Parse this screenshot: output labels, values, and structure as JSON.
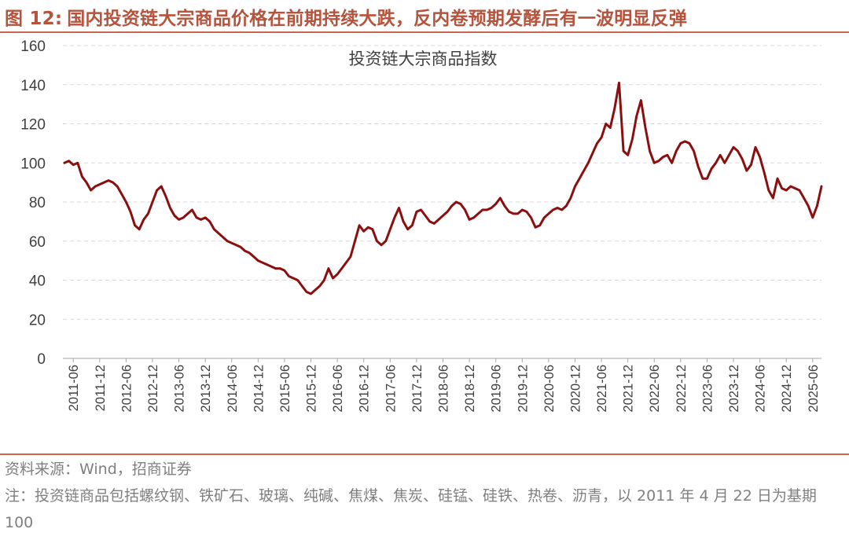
{
  "figure": {
    "label": "图 12:",
    "title": "国内投资链大宗商品价格在前期持续大跌，反内卷预期发酵后有一波明显反弹",
    "source": "资料来源：Wind，招商证券",
    "note": "注：投资链商品包括螺纹钢、铁矿石、玻璃、纯碱、焦煤、焦炭、硅锰、硅铁、热卷、沥青，以 2011 年 4 月 22 日为基期 100"
  },
  "colors": {
    "accent": "#b5533c",
    "line": "#8b0f0f",
    "grid": "#d9d9d9"
  },
  "chart_data": {
    "type": "line",
    "title": "投资链大宗商品指数",
    "xlabel": "",
    "ylabel": "",
    "ylim": [
      0,
      160
    ],
    "yticks": [
      0,
      20,
      40,
      60,
      80,
      100,
      120,
      140,
      160
    ],
    "xticks": [
      "2011-06",
      "2011-12",
      "2012-06",
      "2012-12",
      "2013-06",
      "2013-12",
      "2014-06",
      "2014-12",
      "2015-06",
      "2015-12",
      "2016-06",
      "2016-12",
      "2017-06",
      "2017-12",
      "2018-06",
      "2018-12",
      "2019-06",
      "2019-12",
      "2020-06",
      "2020-12",
      "2021-06",
      "2021-12",
      "2022-06",
      "2022-12",
      "2023-06",
      "2023-12",
      "2024-06",
      "2024-12",
      "2025-06"
    ],
    "grid": "horizontal dashed",
    "legend": "none",
    "series": [
      {
        "points": [
          [
            "2011-04",
            100
          ],
          [
            "2011-05",
            101
          ],
          [
            "2011-06",
            99
          ],
          [
            "2011-07",
            100
          ],
          [
            "2011-08",
            93
          ],
          [
            "2011-09",
            90
          ],
          [
            "2011-10",
            86
          ],
          [
            "2011-11",
            88
          ],
          [
            "2011-12",
            89
          ],
          [
            "2012-01",
            90
          ],
          [
            "2012-02",
            91
          ],
          [
            "2012-03",
            90
          ],
          [
            "2012-04",
            88
          ],
          [
            "2012-05",
            84
          ],
          [
            "2012-06",
            80
          ],
          [
            "2012-07",
            75
          ],
          [
            "2012-08",
            68
          ],
          [
            "2012-09",
            66
          ],
          [
            "2012-10",
            71
          ],
          [
            "2012-11",
            74
          ],
          [
            "2012-12",
            80
          ],
          [
            "2013-01",
            86
          ],
          [
            "2013-02",
            88
          ],
          [
            "2013-03",
            83
          ],
          [
            "2013-04",
            77
          ],
          [
            "2013-05",
            73
          ],
          [
            "2013-06",
            71
          ],
          [
            "2013-07",
            72
          ],
          [
            "2013-08",
            74
          ],
          [
            "2013-09",
            76
          ],
          [
            "2013-10",
            72
          ],
          [
            "2013-11",
            71
          ],
          [
            "2013-12",
            72
          ],
          [
            "2014-01",
            70
          ],
          [
            "2014-02",
            66
          ],
          [
            "2014-03",
            64
          ],
          [
            "2014-04",
            62
          ],
          [
            "2014-05",
            60
          ],
          [
            "2014-06",
            59
          ],
          [
            "2014-07",
            58
          ],
          [
            "2014-08",
            57
          ],
          [
            "2014-09",
            55
          ],
          [
            "2014-10",
            54
          ],
          [
            "2014-11",
            52
          ],
          [
            "2014-12",
            50
          ],
          [
            "2015-01",
            49
          ],
          [
            "2015-02",
            48
          ],
          [
            "2015-03",
            47
          ],
          [
            "2015-04",
            46
          ],
          [
            "2015-05",
            46
          ],
          [
            "2015-06",
            45
          ],
          [
            "2015-07",
            42
          ],
          [
            "2015-08",
            41
          ],
          [
            "2015-09",
            40
          ],
          [
            "2015-10",
            37
          ],
          [
            "2015-11",
            34
          ],
          [
            "2015-12",
            33
          ],
          [
            "2016-01",
            35
          ],
          [
            "2016-02",
            37
          ],
          [
            "2016-03",
            40
          ],
          [
            "2016-04",
            46
          ],
          [
            "2016-05",
            41
          ],
          [
            "2016-06",
            43
          ],
          [
            "2016-07",
            46
          ],
          [
            "2016-08",
            49
          ],
          [
            "2016-09",
            52
          ],
          [
            "2016-10",
            60
          ],
          [
            "2016-11",
            68
          ],
          [
            "2016-12",
            65
          ],
          [
            "2017-01",
            67
          ],
          [
            "2017-02",
            66
          ],
          [
            "2017-03",
            60
          ],
          [
            "2017-04",
            58
          ],
          [
            "2017-05",
            60
          ],
          [
            "2017-06",
            66
          ],
          [
            "2017-07",
            72
          ],
          [
            "2017-08",
            77
          ],
          [
            "2017-09",
            70
          ],
          [
            "2017-10",
            66
          ],
          [
            "2017-11",
            68
          ],
          [
            "2017-12",
            75
          ],
          [
            "2018-01",
            76
          ],
          [
            "2018-02",
            73
          ],
          [
            "2018-03",
            70
          ],
          [
            "2018-04",
            69
          ],
          [
            "2018-05",
            71
          ],
          [
            "2018-06",
            73
          ],
          [
            "2018-07",
            75
          ],
          [
            "2018-08",
            78
          ],
          [
            "2018-09",
            80
          ],
          [
            "2018-10",
            79
          ],
          [
            "2018-11",
            76
          ],
          [
            "2018-12",
            71
          ],
          [
            "2019-01",
            72
          ],
          [
            "2019-02",
            74
          ],
          [
            "2019-03",
            76
          ],
          [
            "2019-04",
            76
          ],
          [
            "2019-05",
            77
          ],
          [
            "2019-06",
            79
          ],
          [
            "2019-07",
            82
          ],
          [
            "2019-08",
            78
          ],
          [
            "2019-09",
            75
          ],
          [
            "2019-10",
            74
          ],
          [
            "2019-11",
            74
          ],
          [
            "2019-12",
            76
          ],
          [
            "2020-01",
            75
          ],
          [
            "2020-02",
            72
          ],
          [
            "2020-03",
            67
          ],
          [
            "2020-04",
            68
          ],
          [
            "2020-05",
            72
          ],
          [
            "2020-06",
            74
          ],
          [
            "2020-07",
            76
          ],
          [
            "2020-08",
            77
          ],
          [
            "2020-09",
            76
          ],
          [
            "2020-10",
            78
          ],
          [
            "2020-11",
            82
          ],
          [
            "2020-12",
            88
          ],
          [
            "2021-01",
            92
          ],
          [
            "2021-02",
            96
          ],
          [
            "2021-03",
            100
          ],
          [
            "2021-04",
            105
          ],
          [
            "2021-05",
            110
          ],
          [
            "2021-06",
            113
          ],
          [
            "2021-07",
            120
          ],
          [
            "2021-08",
            118
          ],
          [
            "2021-09",
            128
          ],
          [
            "2021-10",
            141
          ],
          [
            "2021-11",
            106
          ],
          [
            "2021-12",
            104
          ],
          [
            "2022-01",
            112
          ],
          [
            "2022-02",
            124
          ],
          [
            "2022-03",
            132
          ],
          [
            "2022-04",
            118
          ],
          [
            "2022-05",
            106
          ],
          [
            "2022-06",
            100
          ],
          [
            "2022-07",
            101
          ],
          [
            "2022-08",
            103
          ],
          [
            "2022-09",
            104
          ],
          [
            "2022-10",
            100
          ],
          [
            "2022-11",
            106
          ],
          [
            "2022-12",
            110
          ],
          [
            "2023-01",
            111
          ],
          [
            "2023-02",
            110
          ],
          [
            "2023-03",
            106
          ],
          [
            "2023-04",
            98
          ],
          [
            "2023-05",
            92
          ],
          [
            "2023-06",
            92
          ],
          [
            "2023-07",
            97
          ],
          [
            "2023-08",
            100
          ],
          [
            "2023-09",
            104
          ],
          [
            "2023-10",
            100
          ],
          [
            "2023-11",
            104
          ],
          [
            "2023-12",
            108
          ],
          [
            "2024-01",
            106
          ],
          [
            "2024-02",
            102
          ],
          [
            "2024-03",
            96
          ],
          [
            "2024-04",
            99
          ],
          [
            "2024-05",
            108
          ],
          [
            "2024-06",
            103
          ],
          [
            "2024-07",
            95
          ],
          [
            "2024-08",
            86
          ],
          [
            "2024-09",
            82
          ],
          [
            "2024-10",
            92
          ],
          [
            "2024-11",
            87
          ],
          [
            "2024-12",
            86
          ],
          [
            "2025-01",
            88
          ],
          [
            "2025-02",
            87
          ],
          [
            "2025-03",
            86
          ],
          [
            "2025-04",
            82
          ],
          [
            "2025-05",
            78
          ],
          [
            "2025-06",
            72
          ],
          [
            "2025-07",
            78
          ],
          [
            "2025-08",
            88
          ]
        ]
      }
    ]
  }
}
